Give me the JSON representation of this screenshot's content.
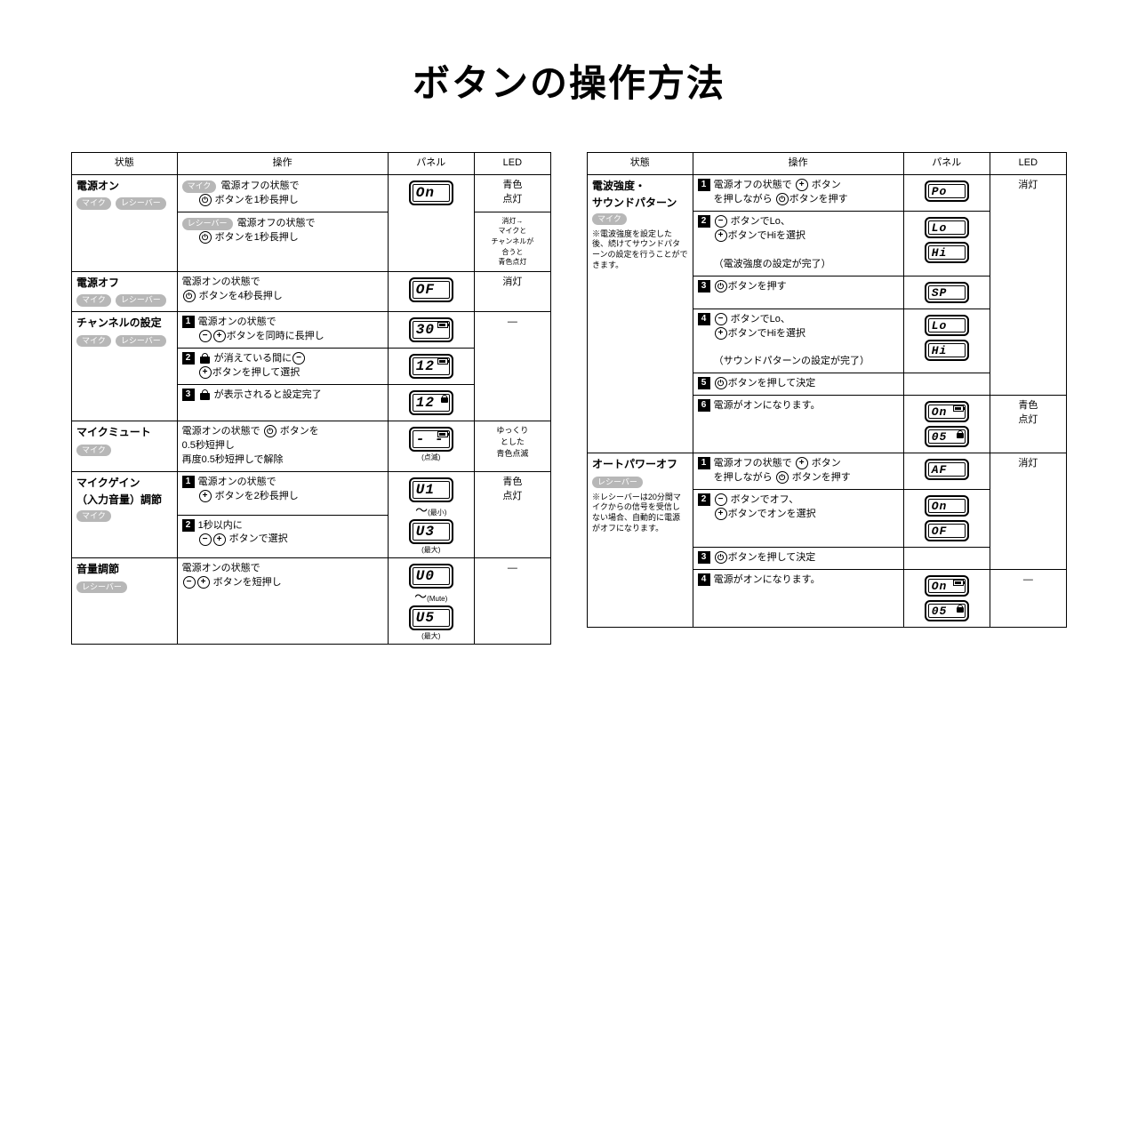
{
  "title": "ボタンの操作方法",
  "headers": {
    "state": "状態",
    "op": "操作",
    "panel": "パネル",
    "led": "LED"
  },
  "pills": {
    "mic": "マイク",
    "receiver": "レシーバー"
  },
  "left": {
    "r1": {
      "state": "電源オン",
      "op1a": "電源オフの状態で",
      "op1b": "ボタンを1秒長押し",
      "op2a": "電源オフの状態で",
      "op2b": "ボタンを1秒長押し",
      "panel": "On",
      "led1": "青色\n点灯",
      "led2": "消灯→\nマイクと\nチャンネルが\n合うと\n青色点灯"
    },
    "r2": {
      "state": "電源オフ",
      "op": "電源オンの状態で",
      "op2": "ボタンを4秒長押し",
      "panel": "OF",
      "led": "消灯"
    },
    "r3": {
      "state": "チャンネルの設定",
      "s1": "電源オンの状態で",
      "s1b": "ボタンを同時に長押し",
      "s2": "が消えている間に",
      "s2b": "ボタンを押して選択",
      "s3": "が表示されると設定完了",
      "p1": "30",
      "p2": "12",
      "p3": "12",
      "led": "—"
    },
    "r4": {
      "state": "マイクミュート",
      "op1": "電源オンの状態で",
      "op1b": "ボタンを",
      "op2": "0.5秒短押し",
      "op3": "再度0.5秒短押しで解除",
      "panel": "- -",
      "pnote": "(点滅)",
      "led": "ゆっくり\nとした\n青色点滅"
    },
    "r5": {
      "state1": "マイクゲイン",
      "state2": "（入力音量）調節",
      "s1": "電源オンの状態で",
      "s1b": "ボタンを2秒長押し",
      "s2": "1秒以内に",
      "s2b": "ボタンで選択",
      "p1": "U1",
      "p1n": "(最小)",
      "p2": "U3",
      "p2n": "(最大)",
      "led": "青色\n点灯"
    },
    "r6": {
      "state": "音量調節",
      "op": "電源オンの状態で",
      "op2": "ボタンを短押し",
      "p1": "U0",
      "p1n": "(Mute)",
      "p2": "U5",
      "p2n": "(最大)",
      "led": "—"
    }
  },
  "right": {
    "r1": {
      "state1": "電波強度・",
      "state2": "サウンドパターン",
      "note": "※電波強度を設定した後、続けてサウンドパターンの設定を行うことができます。",
      "s1a": "電源オフの状態で",
      "s1b": "ボタン",
      "s1c": "を押しながら",
      "s1d": "ボタンを押す",
      "s2a": "ボタンでLo、",
      "s2b": "ボタンでHiを選択",
      "s2c": "（電波強度の設定が完了）",
      "s3": "ボタンを押す",
      "s4a": "ボタンでLo、",
      "s4b": "ボタンでHiを選択",
      "s4c": "（サウンドパターンの設定が完了）",
      "s5": "ボタンを押して決定",
      "s6": "電源がオンになります。",
      "p1": "Po",
      "p2": "Lo",
      "p3": "Hi",
      "p4": "SP",
      "p5": "Lo",
      "p6": "Hi",
      "p7": "On",
      "p8": "05",
      "led1": "消灯",
      "led2": "青色\n点灯"
    },
    "r2": {
      "state": "オートパワーオフ",
      "note": "※レシーバーは20分間マイクからの信号を受信しない場合、自動的に電源がオフになります。",
      "s1a": "電源オフの状態で",
      "s1b": "ボタン",
      "s1c": "を押しながら",
      "s1d": "ボタンを押す",
      "s2a": "ボタンでオフ、",
      "s2b": "ボタンでオンを選択",
      "s3": "ボタンを押して決定",
      "s4": "電源がオンになります。",
      "p1": "AF",
      "p2": "On",
      "p3": "OF",
      "p4": "On",
      "p5": "05",
      "led1": "消灯",
      "led2": "—"
    }
  }
}
